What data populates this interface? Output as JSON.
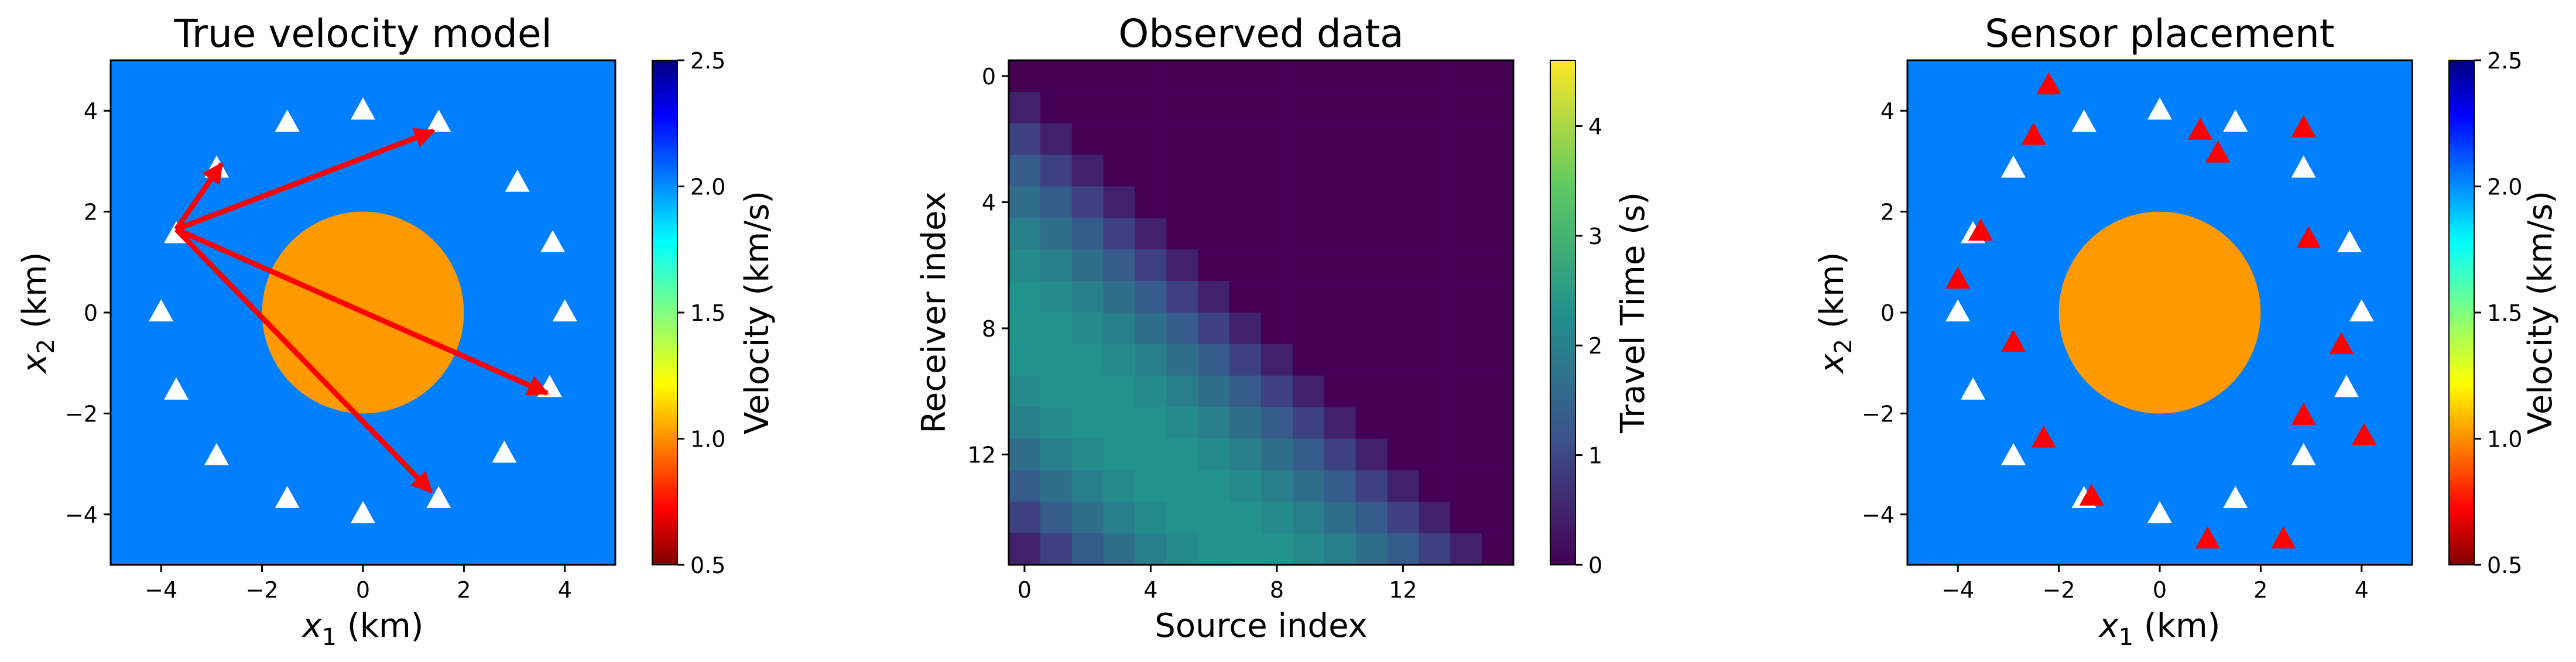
{
  "chart_data": [
    {
      "type": "heatmap",
      "title": "True velocity model",
      "xlabel": "x",
      "xlabel_sub": "1",
      "xlabel_unit": " (km)",
      "ylabel": "x",
      "ylabel_sub": "2",
      "ylabel_unit": " (km)",
      "xlim": [
        -5,
        5
      ],
      "ylim": [
        -5,
        5
      ],
      "x_ticks": [
        -4,
        -2,
        0,
        2,
        4
      ],
      "y_ticks": [
        -4,
        -2,
        0,
        2,
        4
      ],
      "x_tick_labels": [
        "−4",
        "−2",
        "0",
        "2",
        "4"
      ],
      "y_tick_labels": [
        "−4",
        "−2",
        "0",
        "2",
        "4"
      ],
      "background_velocity": 1.95,
      "background_color": "#0080ff",
      "anomaly": {
        "shape": "circle",
        "center": [
          0,
          0
        ],
        "radius": 2,
        "velocity": 1.0,
        "color": "#ff9900"
      },
      "sensors": [
        [
          4.0,
          0.0
        ],
        [
          3.76,
          1.37
        ],
        [
          3.06,
          2.57
        ],
        [
          1.5,
          3.76
        ],
        [
          0.0,
          4.0
        ],
        [
          -1.5,
          3.76
        ],
        [
          -2.9,
          2.85
        ],
        [
          -3.7,
          1.55
        ],
        [
          -4.0,
          0.0
        ],
        [
          -3.7,
          -1.55
        ],
        [
          -2.9,
          -2.85
        ],
        [
          -1.5,
          -3.7
        ],
        [
          0.0,
          -4.0
        ],
        [
          1.5,
          -3.7
        ],
        [
          2.8,
          -2.8
        ],
        [
          3.7,
          -1.5
        ]
      ],
      "sensor_color": "#ffffff",
      "rays": {
        "origin": [
          -3.7,
          1.65
        ],
        "targets": [
          [
            -2.8,
            2.95
          ],
          [
            1.4,
            3.6
          ],
          [
            3.65,
            -1.6
          ],
          [
            1.35,
            -3.55
          ]
        ],
        "color": "#ff0000"
      },
      "colorbar": {
        "label": "Velocity (km/s)",
        "range": [
          0.5,
          2.5
        ],
        "ticks": [
          0.5,
          1.0,
          1.5,
          2.0,
          2.5
        ],
        "tick_labels": [
          "0.5",
          "1.0",
          "1.5",
          "2.0",
          "2.5"
        ],
        "colormap": "jet_r"
      }
    },
    {
      "type": "heatmap",
      "title": "Observed data",
      "xlabel": "Source index",
      "ylabel": "Receiver index",
      "x_ticks": [
        0,
        4,
        8,
        12
      ],
      "y_ticks": [
        0,
        4,
        8,
        12
      ],
      "x_tick_labels": [
        "0",
        "4",
        "8",
        "12"
      ],
      "y_tick_labels": [
        "0",
        "4",
        "8",
        "12"
      ],
      "n_sources": 16,
      "n_receivers": 16,
      "travel_time_model": "distance / velocity between sensors on a ring of radius 4 km, lower triangle only (receiver index > source index)",
      "colorbar": {
        "label": "Travel Time (s)",
        "range": [
          0,
          4.6
        ],
        "ticks": [
          0,
          1,
          2,
          3,
          4
        ],
        "tick_labels": [
          "0",
          "1",
          "2",
          "3",
          "4"
        ],
        "colormap": "viridis"
      }
    },
    {
      "type": "heatmap",
      "title": "Sensor placement",
      "xlabel": "x",
      "xlabel_sub": "1",
      "xlabel_unit": " (km)",
      "ylabel": "x",
      "ylabel_sub": "2",
      "ylabel_unit": " (km)",
      "xlim": [
        -5,
        5
      ],
      "ylim": [
        -5,
        5
      ],
      "x_ticks": [
        -4,
        -2,
        0,
        2,
        4
      ],
      "y_ticks": [
        -4,
        -2,
        0,
        2,
        4
      ],
      "x_tick_labels": [
        "−4",
        "−2",
        "0",
        "2",
        "4"
      ],
      "y_tick_labels": [
        "−4",
        "−2",
        "0",
        "2",
        "4"
      ],
      "background_color": "#0080ff",
      "anomaly": {
        "shape": "circle",
        "center": [
          0,
          0
        ],
        "radius": 2,
        "velocity": 1.0,
        "color": "#ff9900"
      },
      "true_sensors": [
        [
          4.0,
          0.0
        ],
        [
          3.76,
          1.37
        ],
        [
          2.85,
          2.85
        ],
        [
          1.5,
          3.76
        ],
        [
          0.0,
          4.0
        ],
        [
          -1.5,
          3.76
        ],
        [
          -2.9,
          2.85
        ],
        [
          -3.7,
          1.55
        ],
        [
          -4.0,
          0.0
        ],
        [
          -3.7,
          -1.55
        ],
        [
          -2.9,
          -2.85
        ],
        [
          -1.5,
          -3.7
        ],
        [
          0.0,
          -4.0
        ],
        [
          1.5,
          -3.7
        ],
        [
          2.85,
          -2.85
        ],
        [
          3.7,
          -1.5
        ]
      ],
      "true_sensor_color": "#ffffff",
      "estimated_sensors": [
        [
          -2.2,
          4.5
        ],
        [
          -2.5,
          3.5
        ],
        [
          0.8,
          3.6
        ],
        [
          1.15,
          3.15
        ],
        [
          2.85,
          3.65
        ],
        [
          -3.55,
          1.6
        ],
        [
          2.95,
          1.45
        ],
        [
          -4.0,
          0.65
        ],
        [
          -2.9,
          -0.6
        ],
        [
          3.6,
          -0.65
        ],
        [
          2.85,
          -2.05
        ],
        [
          -2.3,
          -2.5
        ],
        [
          4.05,
          -2.45
        ],
        [
          -1.35,
          -3.65
        ],
        [
          0.95,
          -4.5
        ],
        [
          2.45,
          -4.5
        ]
      ],
      "estimated_sensor_color": "#ff0000",
      "colorbar": {
        "label": "Velocity (km/s)",
        "range": [
          0.5,
          2.5
        ],
        "ticks": [
          0.5,
          1.0,
          1.5,
          2.0,
          2.5
        ],
        "tick_labels": [
          "0.5",
          "1.0",
          "1.5",
          "2.0",
          "2.5"
        ],
        "colormap": "jet_r"
      }
    }
  ]
}
